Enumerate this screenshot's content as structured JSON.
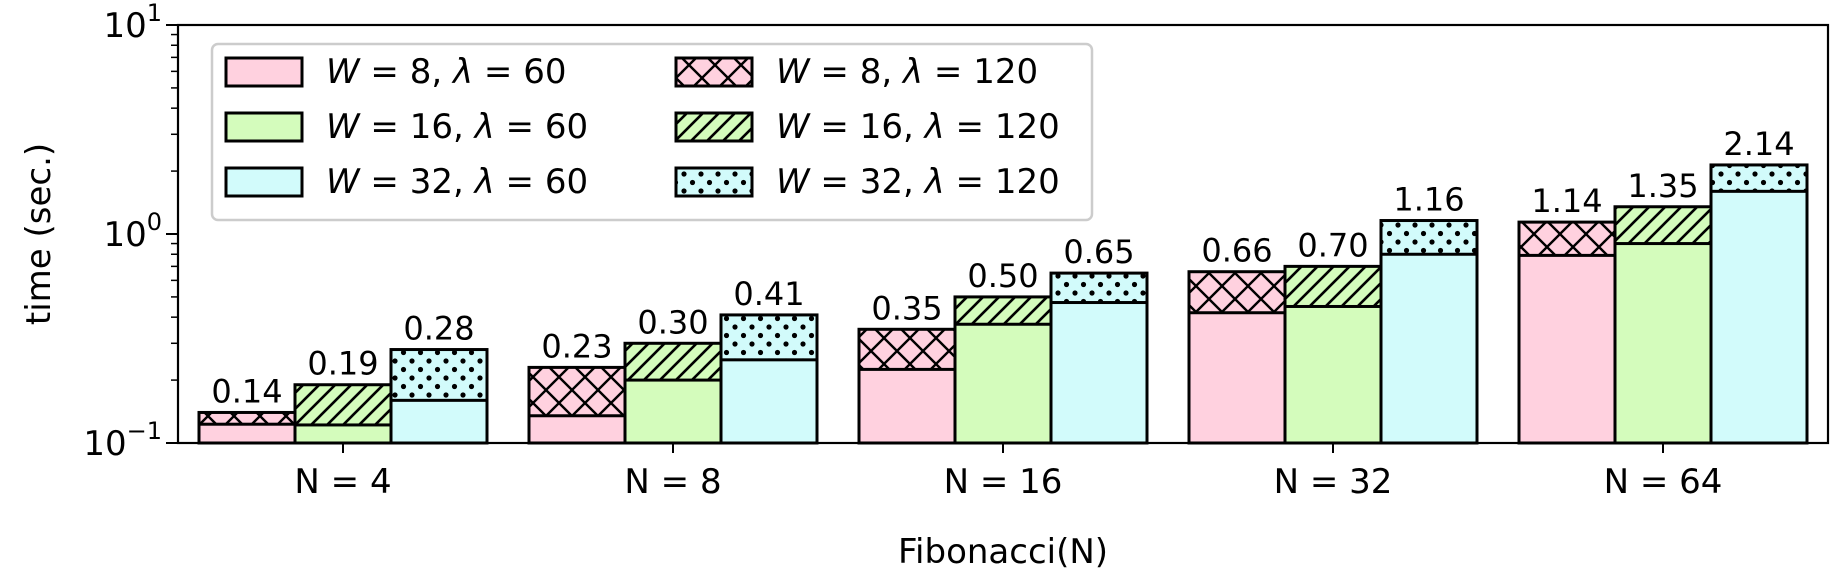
{
  "chart_data": {
    "type": "bar",
    "stacked_overlay": true,
    "xlabel": "Fibonacci(N)",
    "ylabel": "time (sec.)",
    "yscale": "log",
    "ylim": [
      0.1,
      10
    ],
    "yticks": [
      {
        "value": 0.1,
        "base": "10",
        "exp": "−1"
      },
      {
        "value": 1,
        "base": "10",
        "exp": "0"
      },
      {
        "value": 10,
        "base": "10",
        "exp": "1"
      }
    ],
    "categories": [
      "N = 4",
      "N = 8",
      "N = 16",
      "N = 32",
      "N = 64"
    ],
    "legend_position": "top-left",
    "groups": [
      {
        "name": "W = 8",
        "color": "#ffd1df",
        "hatch": "crosshatch",
        "lambda60": [
          0.123,
          0.135,
          0.225,
          0.42,
          0.79
        ],
        "lambda120": [
          0.14,
          0.23,
          0.35,
          0.66,
          1.14
        ],
        "labels": [
          "0.14",
          "0.23",
          "0.35",
          "0.66",
          "1.14"
        ]
      },
      {
        "name": "W = 16",
        "color": "#d4fcbc",
        "hatch": "diagonal",
        "lambda60": [
          0.122,
          0.2,
          0.37,
          0.45,
          0.9
        ],
        "lambda120": [
          0.19,
          0.3,
          0.5,
          0.7,
          1.35
        ],
        "labels": [
          "0.19",
          "0.30",
          "0.50",
          "0.70",
          "1.35"
        ]
      },
      {
        "name": "W = 32",
        "color": "#d2fbfb",
        "hatch": "dots",
        "lambda60": [
          0.16,
          0.25,
          0.47,
          0.8,
          1.6
        ],
        "lambda120": [
          0.28,
          0.41,
          0.65,
          1.16,
          2.14
        ],
        "labels": [
          "0.28",
          "0.41",
          "0.65",
          "1.16",
          "2.14"
        ]
      }
    ],
    "legend": [
      {
        "w": "8",
        "lambda": "60",
        "group": 0,
        "hatched": false
      },
      {
        "w": "16",
        "lambda": "60",
        "group": 1,
        "hatched": false
      },
      {
        "w": "32",
        "lambda": "60",
        "group": 2,
        "hatched": false
      },
      {
        "w": "8",
        "lambda": "120",
        "group": 0,
        "hatched": true
      },
      {
        "w": "16",
        "lambda": "120",
        "group": 1,
        "hatched": true
      },
      {
        "w": "32",
        "lambda": "120",
        "group": 2,
        "hatched": true
      }
    ]
  }
}
